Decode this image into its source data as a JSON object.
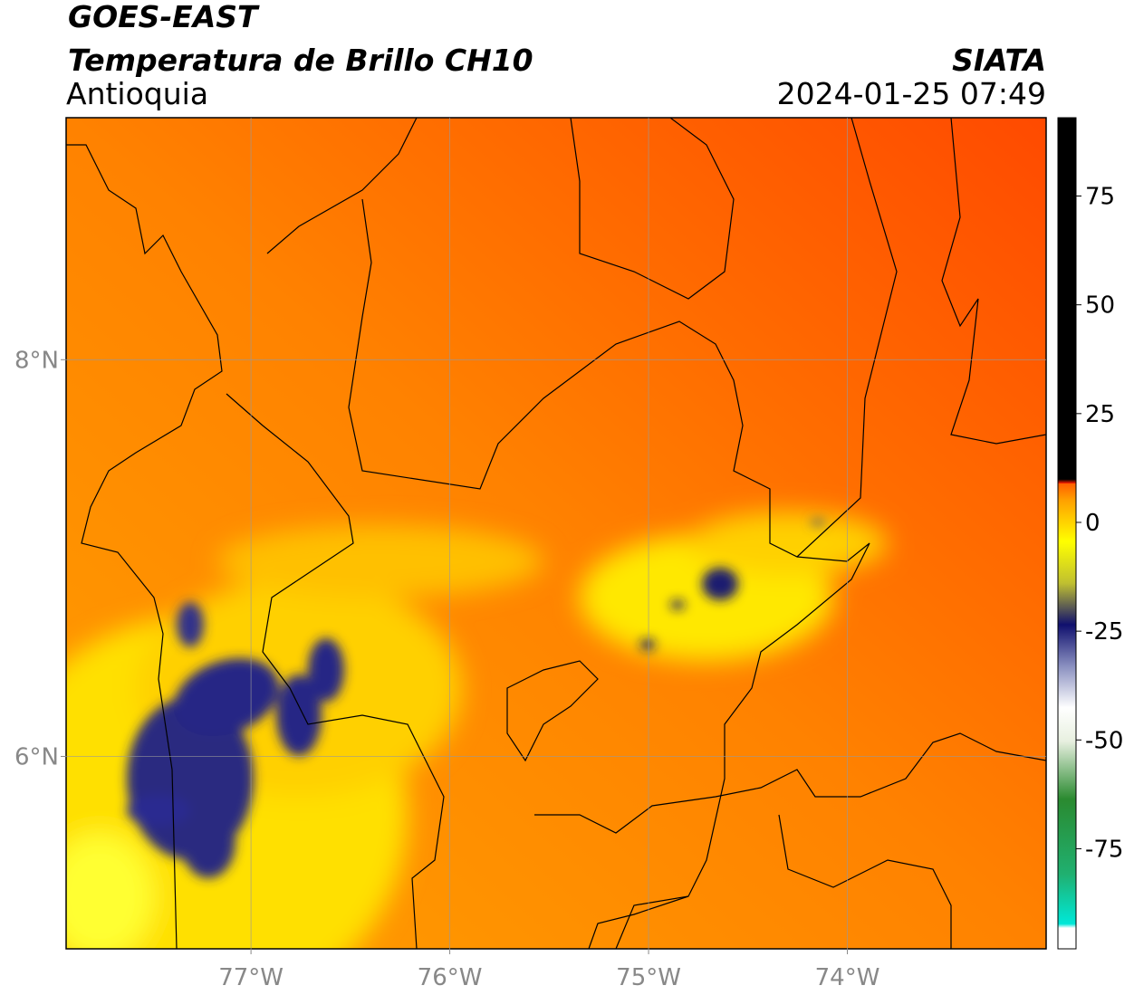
{
  "chart_data": {
    "type": "map",
    "title": "GOES-EAST",
    "subtitle": "Temperatura de Brillo CH10",
    "region": "Antioquia",
    "source": "SIATA",
    "timestamp": "2024-01-25 07:49",
    "xlim": [
      -77.93,
      -73.0
    ],
    "ylim": [
      5.03,
      9.22
    ],
    "xticks": [
      {
        "value": -77,
        "label": "77°W"
      },
      {
        "value": -76,
        "label": "76°W"
      },
      {
        "value": -75,
        "label": "75°W"
      },
      {
        "value": -74,
        "label": "74°W"
      }
    ],
    "yticks": [
      {
        "value": 6,
        "label": "6°N"
      },
      {
        "value": 8,
        "label": "8°N"
      }
    ],
    "grid": true,
    "colorbar": {
      "lim": [
        -98,
        93
      ],
      "ticks": [
        -75,
        -50,
        -25,
        0,
        25,
        50,
        75
      ]
    }
  }
}
